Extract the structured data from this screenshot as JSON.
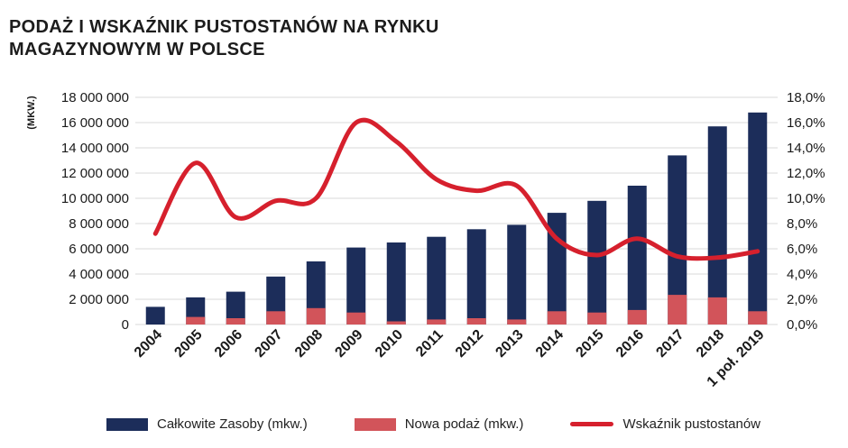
{
  "title": {
    "line1": "PODAŻ I WSKAŹNIK PUSTOSTANÓW NA RYNKU",
    "line2": "MAGAZYNOWYM W POLSCE"
  },
  "colors": {
    "total": "#1c2d5a",
    "supply": "#d2545a",
    "vacancy": "#d6202d",
    "grid": "#d8d8d8"
  },
  "legend": {
    "total": "Całkowite Zasoby (mkw.)",
    "supply": "Nowa podaż (mkw.)",
    "vacancy": "Wskaźnik pustostanów"
  },
  "chart_data": {
    "type": "bar",
    "title": "PODAŻ I WSKAŹNIK PUSTOSTANÓW NA RYNKU MAGAZYNOWYM W POLSCE",
    "ylabel": "(MKW.)",
    "categories": [
      "2004",
      "2005",
      "2006",
      "2007",
      "2008",
      "2009",
      "2010",
      "2011",
      "2012",
      "2013",
      "2014",
      "2015",
      "2016",
      "2017",
      "2018",
      "1 poł. 2019"
    ],
    "ylim": [
      0,
      18000000
    ],
    "y_ticks": [
      "0",
      "2 000 000",
      "4 000 000",
      "6 000 000",
      "8 000 000",
      "10 000 000",
      "12 000 000",
      "14 000 000",
      "16 000 000",
      "18 000 000"
    ],
    "y2lim": [
      0,
      18
    ],
    "y2_ticks": [
      "0,0%",
      "2,0%",
      "4,0%",
      "6,0%",
      "8,0%",
      "10,0%",
      "12,0%",
      "14,0%",
      "16,0%",
      "18,0%"
    ],
    "grid": true,
    "legend_position": "bottom",
    "series": [
      {
        "name": "Całkowite Zasoby (mkw.)",
        "kind": "bar",
        "axis": "left",
        "values": [
          1400000,
          2150000,
          2600000,
          3800000,
          5000000,
          6100000,
          6500000,
          6950000,
          7550000,
          7900000,
          8850000,
          9800000,
          11000000,
          13400000,
          15700000,
          16800000
        ]
      },
      {
        "name": "Nowa podaż (mkw.)",
        "kind": "bar",
        "axis": "left",
        "values": [
          0,
          600000,
          500000,
          1050000,
          1300000,
          950000,
          250000,
          400000,
          500000,
          400000,
          1050000,
          950000,
          1150000,
          2350000,
          2150000,
          1050000
        ]
      },
      {
        "name": "Wskaźnik pustostanów",
        "kind": "line",
        "axis": "right",
        "values": [
          7.2,
          12.8,
          8.5,
          9.8,
          10.0,
          16.0,
          14.5,
          11.5,
          10.6,
          11.0,
          6.8,
          5.5,
          6.8,
          5.4,
          5.3,
          5.8
        ]
      }
    ]
  }
}
